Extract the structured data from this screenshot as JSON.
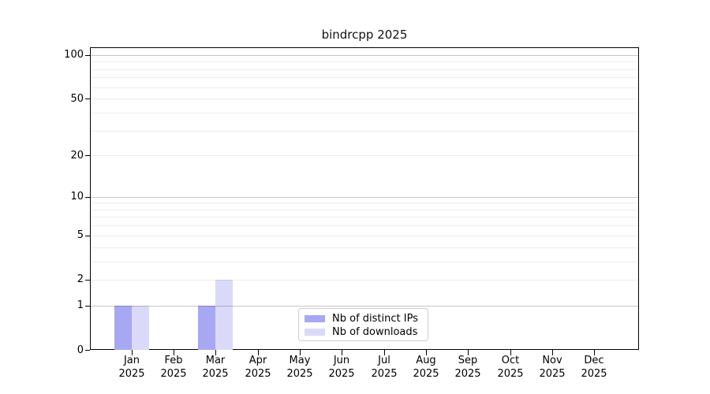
{
  "figure": {
    "title": "bindrcpp 2025"
  },
  "chart_data": {
    "type": "bar",
    "title": "bindrcpp 2025",
    "categories": [
      "Jan 2025",
      "Feb 2025",
      "Mar 2025",
      "Apr 2025",
      "May 2025",
      "Jun 2025",
      "Jul 2025",
      "Aug 2025",
      "Sep 2025",
      "Oct 2025",
      "Nov 2025",
      "Dec 2025"
    ],
    "series": [
      {
        "name": "Nb of distinct IPs",
        "color": "#a7a7f2",
        "values": [
          1,
          0,
          1,
          0,
          0,
          0,
          0,
          0,
          0,
          0,
          0,
          0
        ]
      },
      {
        "name": "Nb of downloads",
        "color": "#dadaf8",
        "values": [
          1,
          0,
          2,
          0,
          0,
          0,
          0,
          0,
          0,
          0,
          0,
          0
        ]
      }
    ],
    "xlabel": "",
    "ylabel": "",
    "yscale": "log1p",
    "ylim": [
      0,
      113
    ],
    "yticks": [
      0,
      1,
      2,
      5,
      10,
      20,
      50,
      100
    ],
    "yticks_major_grid": [
      1,
      10,
      100
    ],
    "yticks_minor": [
      3,
      4,
      6,
      7,
      8,
      9,
      30,
      40,
      60,
      70,
      80,
      90
    ],
    "grid": "horizontal",
    "legend_position": "inside-bottom-center",
    "colors": {
      "spine": "#000000",
      "text": "#000000",
      "background": "#ffffff"
    }
  }
}
